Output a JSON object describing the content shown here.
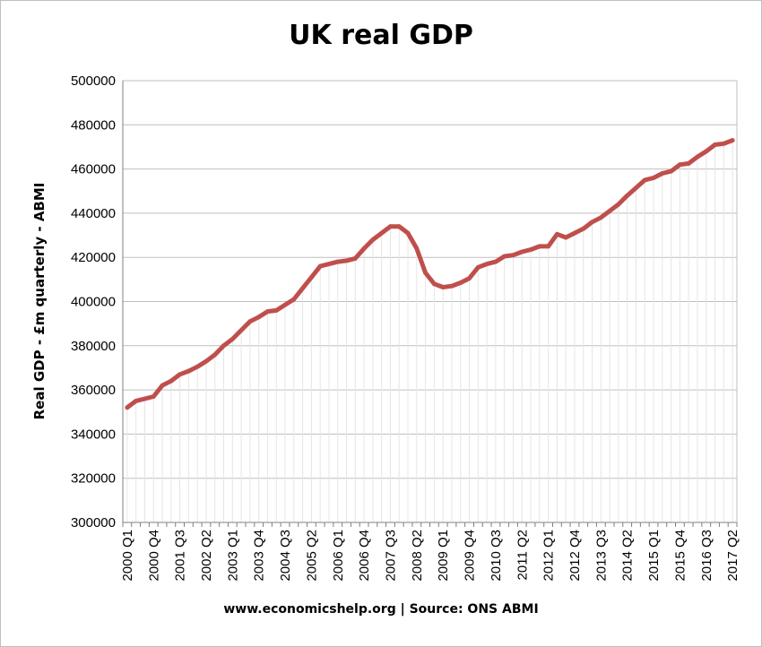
{
  "chart_data": {
    "type": "line",
    "title": "UK real GDP",
    "ylabel": "Real GDP - £m quarterly  - ABMI",
    "xlabel": "",
    "source": "www.economicshelp.org | Source: ONS ABMI",
    "ylim": [
      300000,
      500000
    ],
    "yticks": [
      "300000",
      "320000",
      "340000",
      "360000",
      "380000",
      "400000",
      "420000",
      "440000",
      "460000",
      "480000",
      "500000"
    ],
    "x_tick_labels": [
      "2000 Q1",
      "2000 Q4",
      "2001 Q3",
      "2002 Q2",
      "2003 Q1",
      "2003 Q4",
      "2004 Q3",
      "2005 Q2",
      "2006 Q1",
      "2006 Q4",
      "2007 Q3",
      "2008 Q2",
      "2009 Q1",
      "2009 Q4",
      "2010 Q3",
      "2011 Q2",
      "2012 Q1",
      "2012 Q4",
      "2013 Q3",
      "2014 Q2",
      "2015 Q1",
      "2015 Q4",
      "2016 Q3",
      "2017 Q2"
    ],
    "grid": true,
    "legend": "none",
    "colors": {
      "line": "#c0504d",
      "grid": "#bfbfbf",
      "drop": "#e6e6e6"
    },
    "series": [
      {
        "x": [
          "2000 Q1",
          "2000 Q2",
          "2000 Q3",
          "2000 Q4",
          "2001 Q1",
          "2001 Q2",
          "2001 Q3",
          "2001 Q4",
          "2002 Q1",
          "2002 Q2",
          "2002 Q3",
          "2002 Q4",
          "2003 Q1",
          "2003 Q2",
          "2003 Q3",
          "2003 Q4",
          "2004 Q1",
          "2004 Q2",
          "2004 Q3",
          "2004 Q4",
          "2005 Q1",
          "2005 Q2",
          "2005 Q3",
          "2005 Q4",
          "2006 Q1",
          "2006 Q2",
          "2006 Q3",
          "2006 Q4",
          "2007 Q1",
          "2007 Q2",
          "2007 Q3",
          "2007 Q4",
          "2008 Q1",
          "2008 Q2",
          "2008 Q3",
          "2008 Q4",
          "2009 Q1",
          "2009 Q2",
          "2009 Q3",
          "2009 Q4",
          "2010 Q1",
          "2010 Q2",
          "2010 Q3",
          "2010 Q4",
          "2011 Q1",
          "2011 Q2",
          "2011 Q3",
          "2011 Q4",
          "2012 Q1",
          "2012 Q2",
          "2012 Q3",
          "2012 Q4",
          "2013 Q1",
          "2013 Q2",
          "2013 Q3",
          "2013 Q4",
          "2014 Q1",
          "2014 Q2",
          "2014 Q3",
          "2014 Q4",
          "2015 Q1",
          "2015 Q2",
          "2015 Q3",
          "2015 Q4",
          "2016 Q1",
          "2016 Q2",
          "2016 Q3",
          "2016 Q4",
          "2017 Q1",
          "2017 Q2"
        ],
        "values": [
          352000,
          355000,
          356000,
          357000,
          362000,
          364000,
          367000,
          368500,
          370500,
          373000,
          376000,
          380000,
          383000,
          387000,
          391000,
          393000,
          395500,
          396000,
          398500,
          401000,
          406000,
          411000,
          416000,
          417000,
          418000,
          418500,
          419500,
          424000,
          428000,
          431000,
          434000,
          434000,
          431000,
          424000,
          413000,
          408000,
          406500,
          407000,
          408500,
          410500,
          415500,
          417000,
          418000,
          420500,
          421000,
          422500,
          423500,
          425000,
          425000,
          430500,
          429000,
          431000,
          433000,
          436000,
          438000,
          441000,
          444000,
          448000,
          451500,
          455000,
          456000,
          458000,
          459000,
          462000,
          462500,
          465500,
          468000,
          471000,
          471500,
          473000
        ]
      }
    ]
  }
}
